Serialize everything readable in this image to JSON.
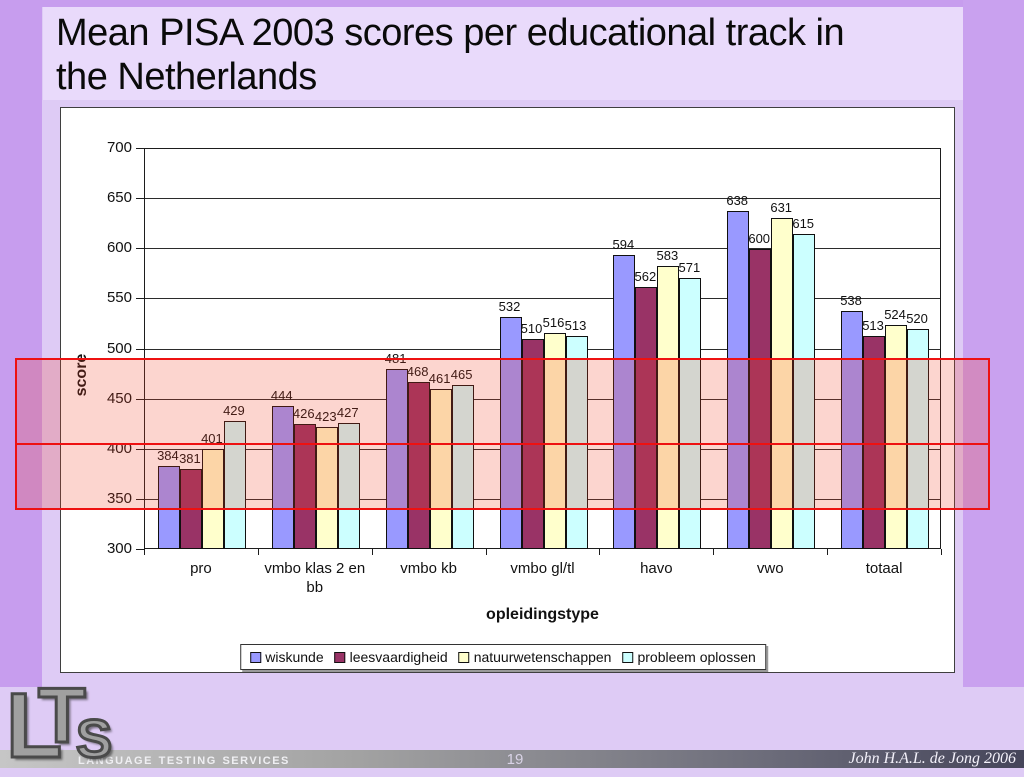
{
  "slide": {
    "title_line1": "Mean PISA 2003 scores per educational track in",
    "title_line2": "the Netherlands",
    "page_number": "19",
    "credit": "John H.A.L. de Jong  2006",
    "footer_brand": "Language Testing Services",
    "logo_letters": {
      "l": "L",
      "t": "T",
      "s": "S"
    }
  },
  "chart_data": {
    "type": "bar",
    "title": "",
    "xlabel": "opleidingstype",
    "ylabel": "score",
    "ylim": [
      300,
      700
    ],
    "ytick_step": 50,
    "grid": true,
    "legend_position": "bottom",
    "categories": [
      "pro",
      "vmbo klas 2 en bb",
      "vmbo kb",
      "vmbo gl/tl",
      "havo",
      "vwo",
      "totaal"
    ],
    "series": [
      {
        "name": "wiskunde",
        "color": "#9999FF",
        "values": [
          384,
          444,
          481,
          532,
          594,
          638,
          538
        ]
      },
      {
        "name": "leesvaardigheid",
        "color": "#993366",
        "values": [
          381,
          426,
          468,
          510,
          562,
          600,
          513
        ]
      },
      {
        "name": "natuurwetenschappen",
        "color": "#FFFFCC",
        "values": [
          401,
          423,
          461,
          516,
          583,
          631,
          524
        ]
      },
      {
        "name": "probleem oplossen",
        "color": "#CCFFFF",
        "values": [
          429,
          427,
          465,
          513,
          571,
          615,
          520
        ]
      }
    ],
    "highlight_band": {
      "score_top": 490,
      "score_mid": 405,
      "score_bottom": 338,
      "color": "#ee1111"
    }
  }
}
